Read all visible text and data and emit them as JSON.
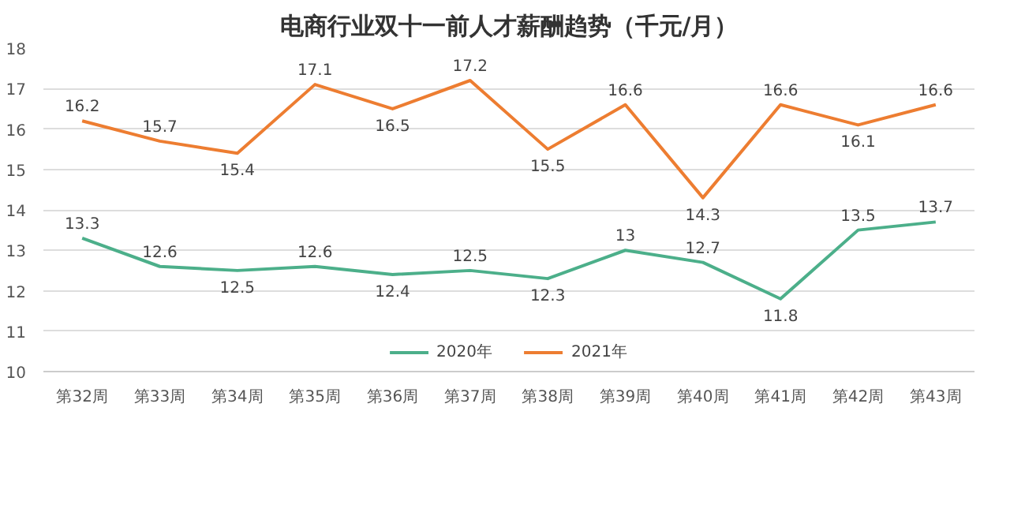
{
  "chart_data": {
    "type": "line",
    "title": "电商行业双十一前人才薪酬趋势（千元/月）",
    "categories": [
      "第32周",
      "第33周",
      "第34周",
      "第35周",
      "第36周",
      "第37周",
      "第38周",
      "第39周",
      "第40周",
      "第41周",
      "第42周",
      "第43周"
    ],
    "series": [
      {
        "name": "2020年",
        "color": "#4caf8a",
        "values": [
          13.3,
          12.6,
          12.5,
          12.6,
          12.4,
          12.5,
          12.3,
          13,
          12.7,
          11.8,
          13.5,
          13.7
        ]
      },
      {
        "name": "2021年",
        "color": "#ed7d31",
        "values": [
          16.2,
          15.7,
          15.4,
          17.1,
          16.5,
          17.2,
          15.5,
          16.6,
          14.3,
          16.6,
          16.1,
          16.6
        ]
      }
    ],
    "ylim": [
      10,
      18
    ],
    "yticks": [
      10,
      11,
      12,
      13,
      14,
      15,
      16,
      17,
      18
    ],
    "grid": "y",
    "legend": "bottom",
    "data_labels": true,
    "marker": "none",
    "line_style": "solid"
  }
}
